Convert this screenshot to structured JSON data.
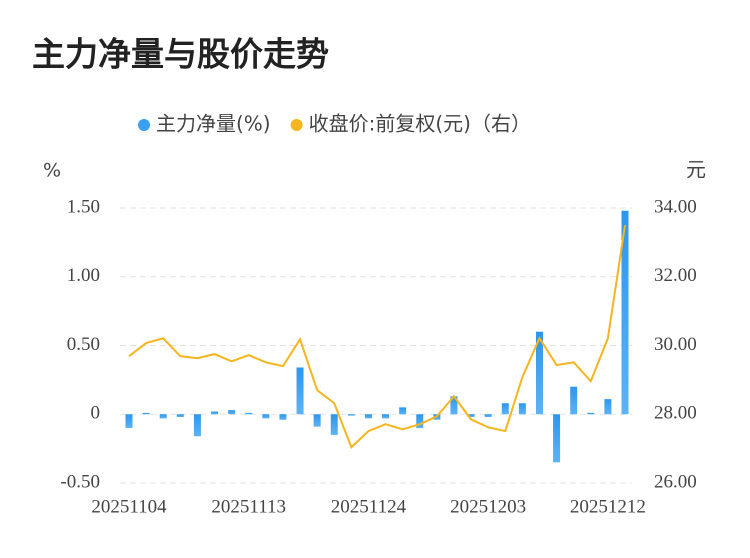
{
  "chart_data": {
    "type": "bar-line",
    "title": "主力净量与股价走势",
    "y_label": "%",
    "y2_label": "元",
    "x": [
      "20251104",
      null,
      null,
      null,
      null,
      null,
      null,
      "20251113",
      null,
      null,
      null,
      null,
      null,
      null,
      "20251124",
      null,
      null,
      null,
      null,
      null,
      null,
      "20251203",
      null,
      null,
      null,
      null,
      null,
      null,
      "20251212",
      null
    ],
    "series": [
      {
        "name": "主力净量(%)",
        "color": "#3a9ff0",
        "values": [
          -0.1,
          0.01,
          -0.03,
          -0.02,
          -0.16,
          0.02,
          0.03,
          0.01,
          -0.03,
          -0.04,
          0.34,
          -0.09,
          -0.15,
          -0.01,
          -0.03,
          -0.03,
          0.05,
          -0.1,
          -0.04,
          0.13,
          -0.02,
          -0.02,
          0.08,
          0.08,
          0.6,
          -0.35,
          0.2,
          0.01,
          0.11,
          1.48
        ]
      },
      {
        "name": "收盘价:前复权(元)（右）",
        "color": "#f5b51e",
        "axis": "y2",
        "values": [
          29.69,
          30.07,
          30.21,
          29.69,
          29.63,
          29.75,
          29.54,
          29.72,
          29.51,
          29.4,
          30.18,
          28.7,
          28.32,
          27.04,
          27.51,
          27.71,
          27.56,
          27.71,
          27.94,
          28.52,
          27.85,
          27.62,
          27.51,
          29.08,
          30.21,
          29.43,
          29.51,
          28.96,
          30.21,
          33.5
        ]
      }
    ],
    "ylim": [
      -0.5,
      1.5
    ],
    "yticks": [
      {
        "value": -0.5,
        "label": "-0.50"
      },
      0,
      {
        "value": 0.5,
        "label": "0.50"
      },
      {
        "value": 1,
        "label": "1.00"
      },
      {
        "value": 1.5,
        "label": "1.50"
      }
    ],
    "y2lim": [
      26,
      34
    ],
    "y2ticks": [
      {
        "value": 26,
        "label": "26.00"
      },
      {
        "value": 28,
        "label": "28.00"
      },
      {
        "value": 30,
        "label": "30.00"
      },
      {
        "value": 32,
        "label": "32.00"
      },
      {
        "value": 34,
        "label": "34.00"
      }
    ],
    "grid": true
  }
}
